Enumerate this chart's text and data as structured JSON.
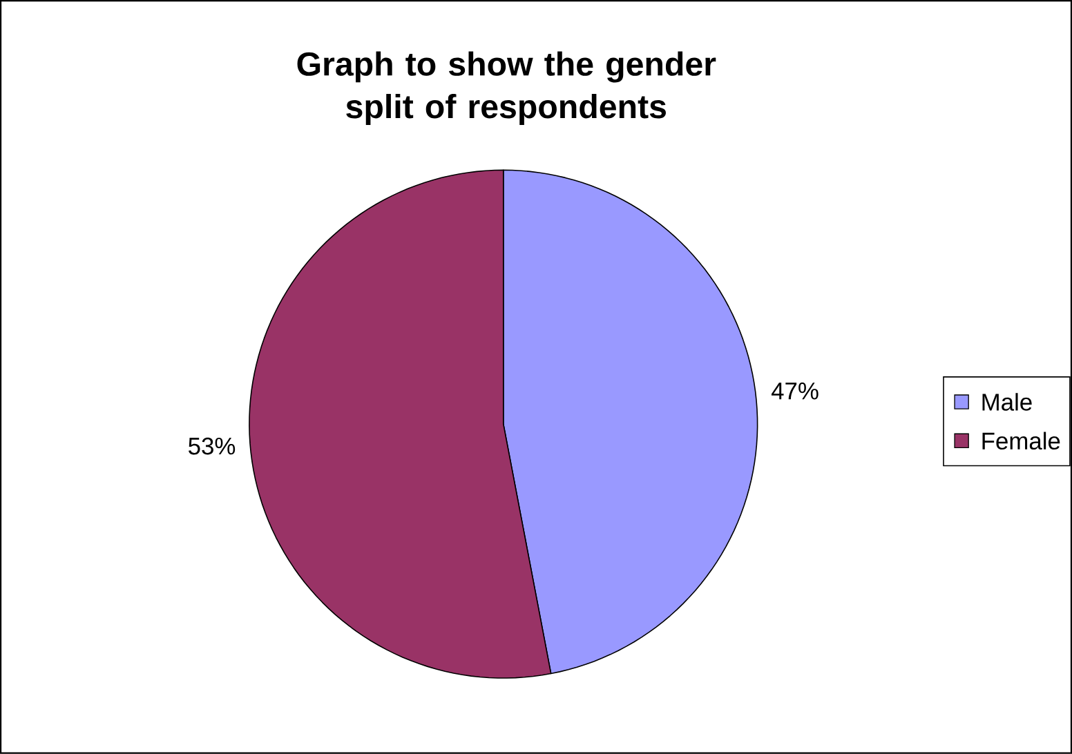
{
  "chart_data": {
    "type": "pie",
    "title": "Graph to show the gender split of respondents",
    "categories": [
      "Male",
      "Female"
    ],
    "values": [
      47,
      53
    ],
    "colors": [
      "#9999ff",
      "#993366"
    ],
    "value_labels": [
      "47%",
      "53%"
    ],
    "legend": "right"
  }
}
